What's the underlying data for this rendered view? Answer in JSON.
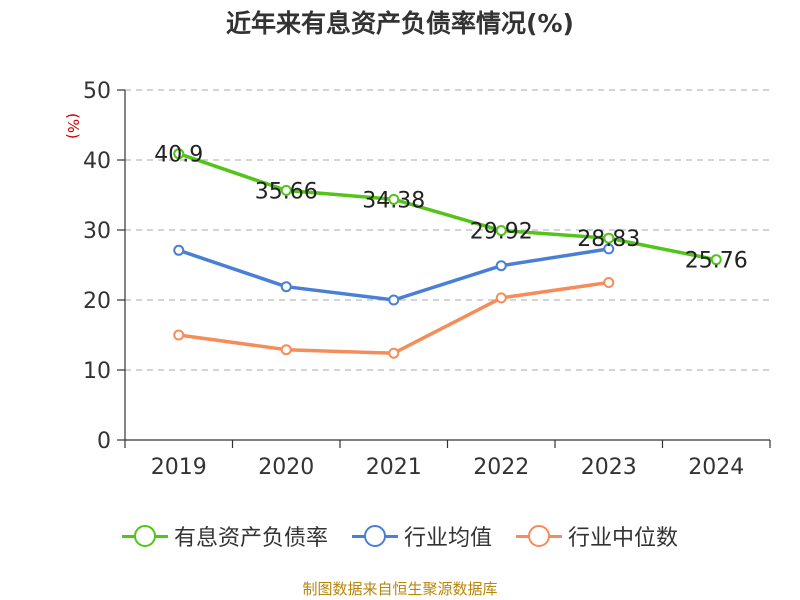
{
  "title": "近年来有息资产负债率情况(%)",
  "source": "制图数据来自恒生聚源数据库",
  "chart_data": {
    "type": "line",
    "title": "近年来有息资产负债率情况(%)",
    "ylabel": "(%)",
    "xlabel": "",
    "categories": [
      "2019",
      "2020",
      "2021",
      "2022",
      "2023",
      "2024"
    ],
    "ylim": [
      0,
      50
    ],
    "yticks": [
      0,
      10,
      20,
      30,
      40,
      50
    ],
    "grid": true,
    "legend_position": "bottom",
    "series": [
      {
        "name": "有息资产负债率",
        "color": "#52c41a",
        "values": [
          40.9,
          35.66,
          34.38,
          29.92,
          28.83,
          25.76
        ],
        "labels": [
          "40.9",
          "35.66",
          "34.38",
          "29.92",
          "28.83",
          "25.76"
        ]
      },
      {
        "name": "行业均值",
        "color": "#4a7fd6",
        "values": [
          27.1,
          21.9,
          20.0,
          24.9,
          27.3,
          null
        ]
      },
      {
        "name": "行业中位数",
        "color": "#f58d5a",
        "values": [
          15.0,
          12.9,
          12.4,
          20.3,
          22.5,
          null
        ]
      }
    ]
  }
}
